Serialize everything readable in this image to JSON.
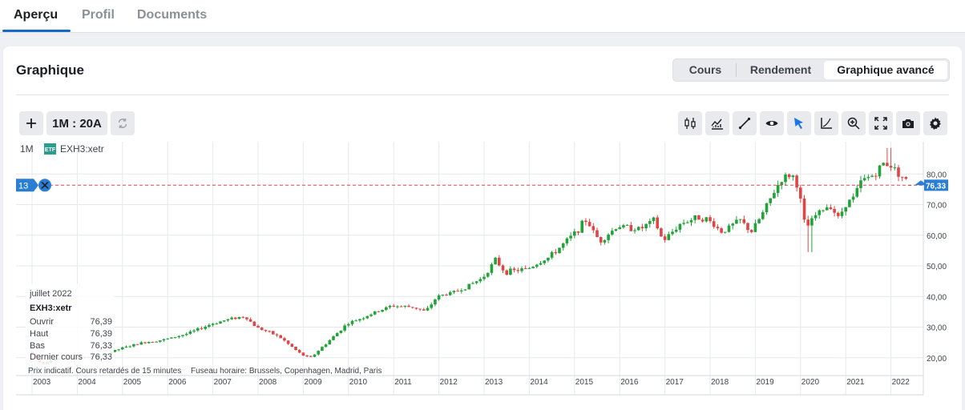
{
  "nav": {
    "tabs": [
      "Aperçu",
      "Profil",
      "Documents"
    ]
  },
  "card": {
    "title": "Graphique"
  },
  "segmented": {
    "options": [
      "Cours",
      "Rendement",
      "Graphique avancé"
    ],
    "selected": "Graphique avancé"
  },
  "toolbar": {
    "period_label": "1M : 20A",
    "left_icons": [
      "plus-icon",
      "refresh-icon"
    ],
    "right_icons": [
      "candlestick-icon",
      "indicators-icon",
      "draw-line-icon",
      "eye-icon",
      "cursor-icon",
      "axis-icon",
      "zoom-icon",
      "fullscreen-icon",
      "camera-icon",
      "gear-icon"
    ],
    "accent": "#1a73e8"
  },
  "chart": {
    "interval": "1M",
    "symbol_badge": "ETF",
    "symbol": "EXH3:xetr",
    "alert_count": "13",
    "current_price": "76,33",
    "y_ticks": [
      "80,00",
      "70,00",
      "60,00",
      "50,00",
      "40,00",
      "30,00",
      "20,00"
    ],
    "x_ticks": [
      "2003",
      "2004",
      "2005",
      "2006",
      "2007",
      "2008",
      "2009",
      "2010",
      "2011",
      "2012",
      "2013",
      "2014",
      "2015",
      "2016",
      "2017",
      "2018",
      "2019",
      "2020",
      "2021",
      "2022"
    ],
    "tooltip": {
      "date": "juillet 2022",
      "symbol": "EXH3:xetr",
      "rows": [
        {
          "label": "Ouvrir",
          "value": "76,39"
        },
        {
          "label": "Haut",
          "value": "76,39"
        },
        {
          "label": "Bas",
          "value": "76,33"
        },
        {
          "label": "Dernier cours",
          "value": "76,33"
        }
      ]
    },
    "footer": {
      "delay_note": "Prix indicatif. Cours retardés de 15 minutes",
      "timezone": "Fuseau horaire: Brussels, Copenhagen, Madrid, Paris"
    },
    "colors": {
      "up": "#22a33a",
      "down": "#e04545",
      "price_line": "#e04545",
      "label_bg": "#2a7fd4"
    }
  },
  "chart_data": {
    "type": "candlestick",
    "interval": "monthly",
    "title": "",
    "ylim": [
      14,
      90
    ],
    "start_year": 2003,
    "end_year": 2022,
    "anchors": [
      [
        2003.0,
        22
      ],
      [
        2003.25,
        18
      ],
      [
        2003.5,
        19.5
      ],
      [
        2004.0,
        20
      ],
      [
        2004.5,
        20.5
      ],
      [
        2005.0,
        23
      ],
      [
        2005.5,
        25
      ],
      [
        2006.0,
        26
      ],
      [
        2006.5,
        28
      ],
      [
        2007.0,
        31
      ],
      [
        2007.5,
        33
      ],
      [
        2007.75,
        33.5
      ],
      [
        2008.0,
        30
      ],
      [
        2008.5,
        27
      ],
      [
        2009.0,
        21
      ],
      [
        2009.2,
        20
      ],
      [
        2009.5,
        24
      ],
      [
        2010.0,
        31
      ],
      [
        2010.5,
        34
      ],
      [
        2011.0,
        37
      ],
      [
        2011.5,
        36.5
      ],
      [
        2011.75,
        35
      ],
      [
        2012.0,
        40
      ],
      [
        2012.5,
        42
      ],
      [
        2013.0,
        46
      ],
      [
        2013.3,
        52
      ],
      [
        2013.5,
        48
      ],
      [
        2014.0,
        49
      ],
      [
        2014.5,
        53
      ],
      [
        2015.0,
        60
      ],
      [
        2015.3,
        65
      ],
      [
        2015.6,
        58
      ],
      [
        2016.0,
        63
      ],
      [
        2016.5,
        62
      ],
      [
        2016.8,
        65
      ],
      [
        2017.0,
        58
      ],
      [
        2017.4,
        64
      ],
      [
        2017.8,
        66
      ],
      [
        2018.0,
        65
      ],
      [
        2018.3,
        61
      ],
      [
        2018.7,
        65
      ],
      [
        2018.95,
        61
      ],
      [
        2019.2,
        67
      ],
      [
        2019.6,
        78
      ],
      [
        2019.85,
        80
      ],
      [
        2020.0,
        75
      ],
      [
        2020.15,
        62
      ],
      [
        2020.4,
        67
      ],
      [
        2020.7,
        70
      ],
      [
        2020.9,
        65
      ],
      [
        2021.0,
        70
      ],
      [
        2021.2,
        72
      ],
      [
        2021.4,
        78
      ],
      [
        2021.7,
        80
      ],
      [
        2021.9,
        84
      ],
      [
        2022.1,
        82
      ],
      [
        2022.3,
        79
      ],
      [
        2022.45,
        76.33
      ]
    ],
    "last": {
      "date": "juillet 2022",
      "open": 76.39,
      "high": 76.39,
      "low": 76.33,
      "close": 76.33
    }
  }
}
